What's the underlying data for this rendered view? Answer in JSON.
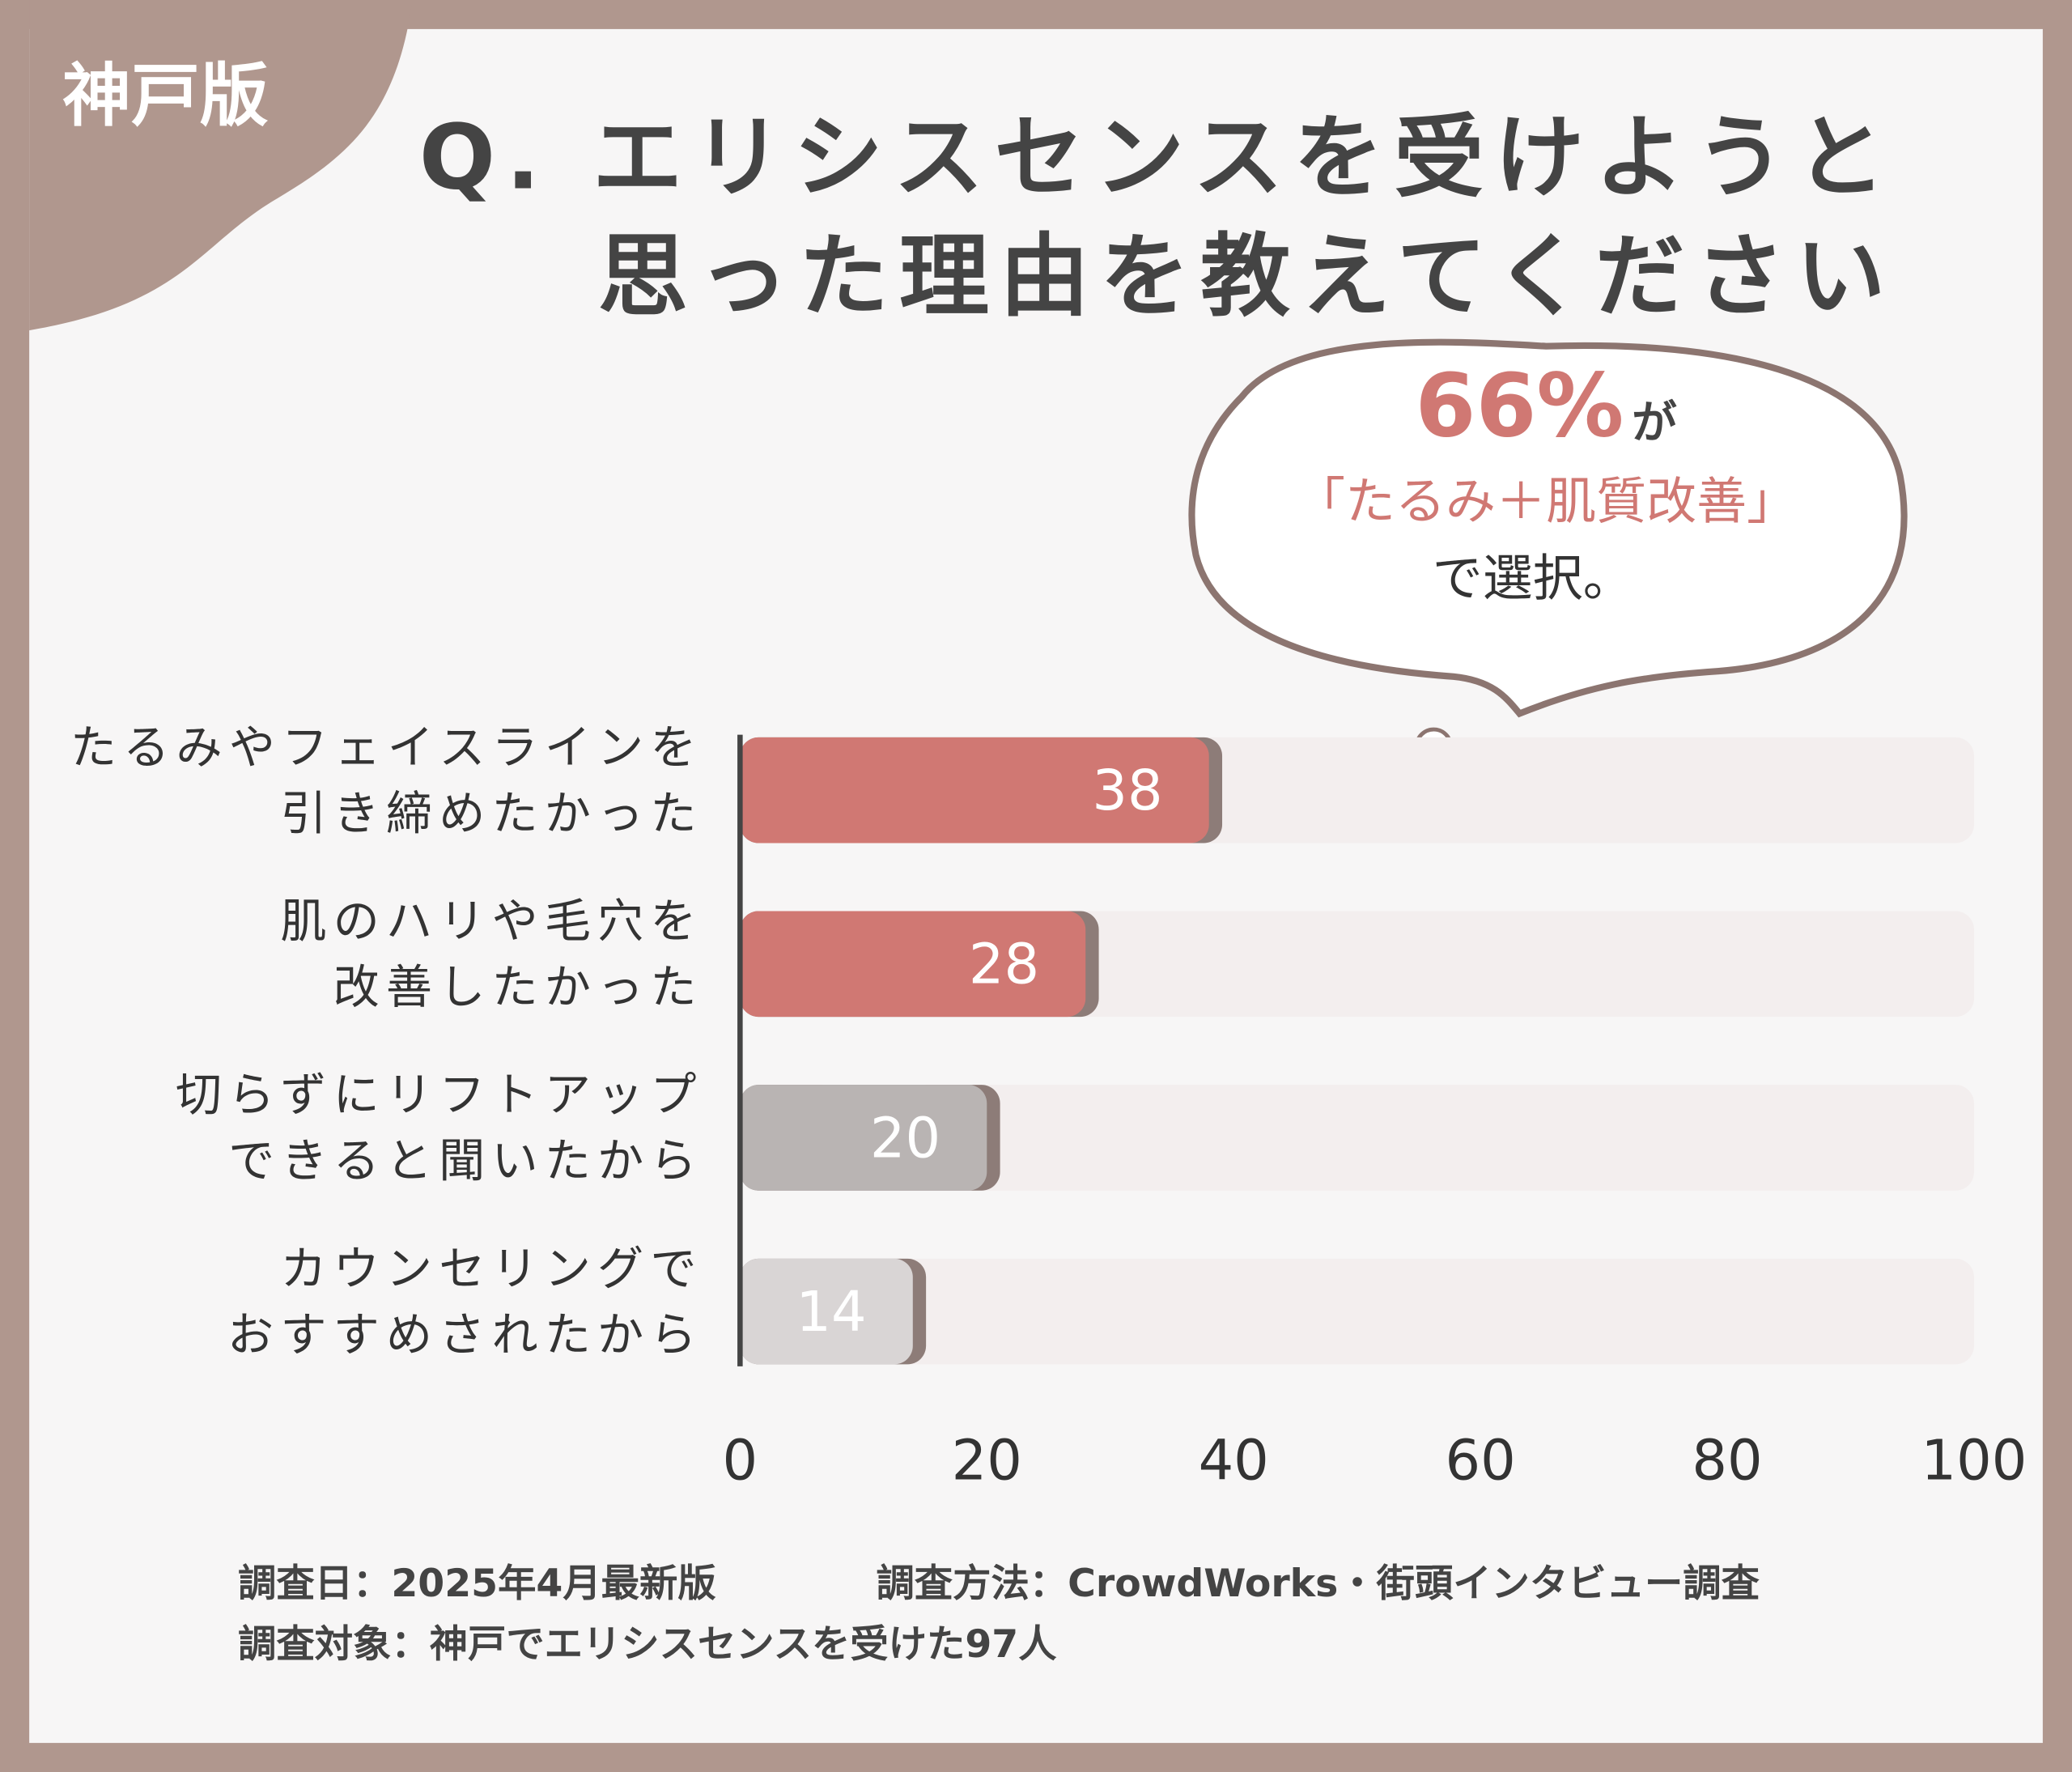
{
  "chart_data": {
    "type": "bar",
    "orientation": "horizontal",
    "tag": "神戸版",
    "title": [
      "Q. エリシスセンスを受けようと",
      "思った理由を教えてください"
    ],
    "annotation": {
      "highlight": "66%",
      "suffix": "が",
      "line2": "「たるみ＋肌質改善」",
      "line3": "で選択。"
    },
    "categories": [
      [
        "たるみやフェイスラインを",
        "引き締めたかった"
      ],
      [
        "肌のハリや毛穴を",
        "改善したかった"
      ],
      [
        "切らずにリフトアップ",
        "できると聞いたから"
      ],
      [
        "カウンセリングで",
        "おすすめされたから"
      ]
    ],
    "values": [
      38,
      28,
      20,
      14
    ],
    "colors": [
      "#d07873",
      "#d07873",
      "#b9b4b3",
      "#d9d5d5"
    ],
    "track_color": "#f3eeee",
    "xlim": [
      0,
      100
    ],
    "xticks": [
      0,
      20,
      40,
      60,
      80,
      100
    ],
    "notes": [
      "調査日：2025年4月最新版",
      "調査方法：CrowdWorks・街頭インタビュー調査",
      "調査対象：神戸でエリシスセンスを受けた97人"
    ]
  }
}
